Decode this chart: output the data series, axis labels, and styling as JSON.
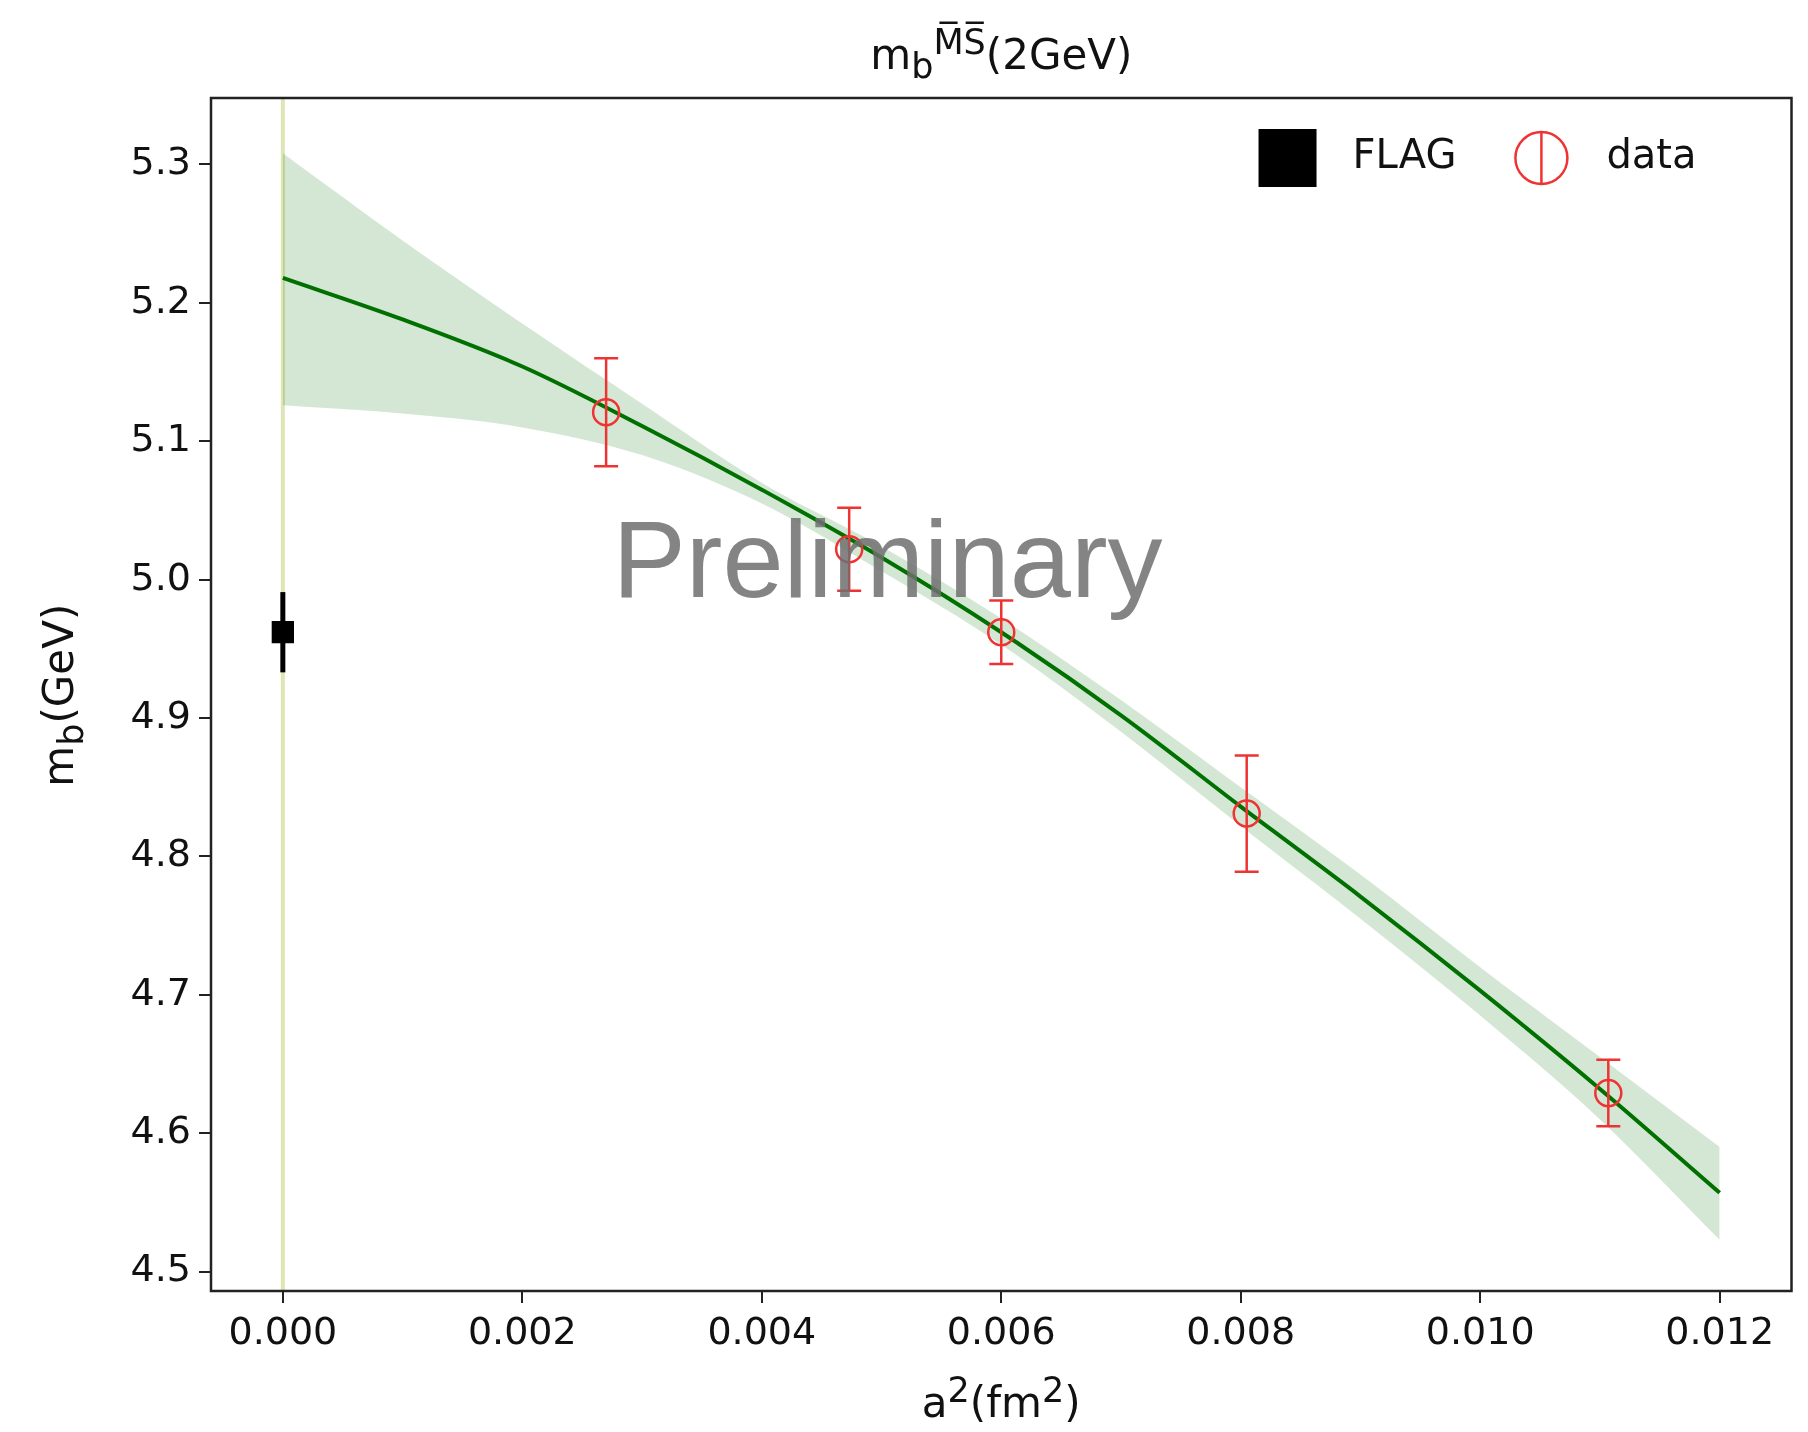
{
  "chart_data": {
    "type": "scatter",
    "title": "m$_{b}$$^{M̅S̅}$(2GeV)",
    "xlabel": "a$^{2}$(fm$^{2}$)",
    "ylabel": "m$_{b}$(GeV)",
    "annotations": [
      "Preliminary"
    ],
    "xlim": [
      -0.0006,
      0.0126
    ],
    "ylim": [
      4.486,
      5.348
    ],
    "xticks": [
      {
        "value": 0,
        "label": "0.000"
      },
      {
        "value": 0.002,
        "label": "0.002"
      },
      {
        "value": 0.004,
        "label": "0.004"
      },
      {
        "value": 0.006,
        "label": "0.006"
      },
      {
        "value": 0.008,
        "label": "0.008"
      },
      {
        "value": 0.01,
        "label": "0.010"
      },
      {
        "value": 0.012,
        "label": "0.012"
      }
    ],
    "yticks": [
      4.5,
      4.6,
      4.7,
      4.8,
      4.9,
      {
        "value": 5,
        "label": "5.0"
      },
      5.1,
      5.2,
      5.3
    ],
    "grid": false,
    "legend": "top right",
    "ref_lines": [
      {
        "axis": "x",
        "value": 0,
        "color": "#dfe5b5"
      }
    ],
    "series": [
      {
        "type": "line",
        "color": "#007000",
        "x": [
          0,
          0.001,
          0.002,
          0.003,
          0.004,
          0.005,
          0.006,
          0.007,
          0.008,
          0.009,
          0.01,
          0.011,
          0.012
        ],
        "values": [
          5.218,
          5.188,
          5.154,
          5.111,
          5.065,
          5.016,
          4.962,
          4.902,
          4.836,
          4.771,
          4.703,
          4.632,
          4.557
        ],
        "lower": [
          5.126,
          5.12,
          5.11,
          5.09,
          5.055,
          5.006,
          4.953,
          4.89,
          4.822,
          4.755,
          4.685,
          4.61,
          4.523
        ],
        "upper": [
          5.308,
          5.245,
          5.185,
          5.127,
          5.07,
          5.024,
          4.972,
          4.913,
          4.85,
          4.787,
          4.72,
          4.655,
          4.59
        ],
        "marker": "none"
      },
      {
        "type": "scatter",
        "name": "FLAG",
        "color": "#000000",
        "marker": "square",
        "x": [
          0
        ],
        "values": [
          4.962
        ],
        "errors": [
          0.029
        ]
      },
      {
        "type": "scatter",
        "name": "data",
        "color": "#ee3333",
        "marker": "circle",
        "x": [
          0.0027,
          0.00473,
          0.006,
          0.00805,
          0.01107
        ],
        "values": [
          5.121,
          5.022,
          4.962,
          4.831,
          4.629
        ],
        "errors": [
          0.039,
          0.03,
          0.023,
          0.042,
          0.024
        ]
      }
    ]
  }
}
